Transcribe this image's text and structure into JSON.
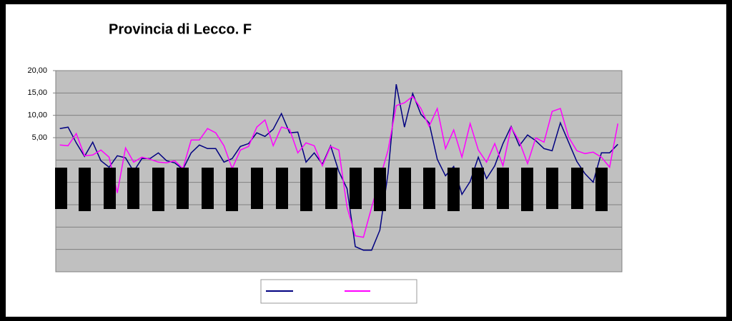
{
  "chart_data": {
    "type": "line",
    "title": "Provincia di Lecco. F",
    "categories": [
      null,
      null,
      null,
      null,
      null,
      null,
      null,
      null,
      null,
      null,
      null,
      null,
      null,
      null,
      null,
      null,
      null,
      null,
      null,
      null,
      null,
      null,
      null,
      null,
      null,
      null,
      null,
      null,
      null,
      null,
      null,
      null,
      null,
      null,
      null,
      null,
      null,
      null,
      null,
      null,
      null,
      null,
      null,
      null,
      null,
      null,
      null,
      null,
      null,
      null,
      null,
      null,
      null,
      null,
      null,
      null,
      null,
      null,
      null,
      null,
      null,
      null,
      null,
      null,
      null,
      null,
      null,
      null,
      null
    ],
    "series": [
      {
        "color": "#000080",
        "values": [
          7.04,
          7.36,
          3.84,
          0.8,
          4.0,
          -0.16,
          -1.6,
          0.96,
          0.48,
          -2.56,
          0.32,
          0.32,
          1.6,
          -0.16,
          -0.64,
          -2.08,
          1.6,
          3.36,
          2.56,
          2.56,
          -0.48,
          0.32,
          3.04,
          3.68,
          6.08,
          5.28,
          6.88,
          10.4,
          6.08,
          6.24,
          -0.48,
          1.6,
          -0.96,
          3.2,
          -2.56,
          -6.4,
          -19.36,
          -20.16,
          -20.16,
          -15.68,
          -2.88,
          16.96,
          7.36,
          14.88,
          10.24,
          8.32,
          0.16,
          -3.52,
          -1.44,
          -7.68,
          -4.8,
          0.64,
          -4.16,
          -1.28,
          3.68,
          7.52,
          3.2,
          5.6,
          4.32,
          2.56,
          2.08,
          8.32,
          4.0,
          -0.32,
          -3.04,
          -4.96,
          1.6,
          1.6,
          3.52
        ]
      },
      {
        "color": "#ff00ff",
        "values": [
          3.36,
          3.2,
          5.92,
          0.96,
          1.12,
          2.24,
          0.64,
          -7.36,
          2.72,
          -0.48,
          0.64,
          0.16,
          -0.48,
          -0.64,
          -0.16,
          -1.92,
          4.48,
          4.48,
          7.04,
          6.08,
          3.2,
          -1.92,
          2.24,
          3.04,
          7.36,
          8.96,
          3.2,
          7.36,
          6.88,
          1.6,
          3.84,
          3.2,
          -1.28,
          3.04,
          2.24,
          -10.56,
          -16.96,
          -17.28,
          -10.56,
          -4.16,
          2.24,
          12.16,
          12.8,
          14.24,
          11.52,
          7.52,
          11.52,
          2.56,
          6.72,
          0.64,
          8.16,
          2.24,
          -0.48,
          3.68,
          -1.28,
          7.36,
          4.16,
          -0.8,
          4.96,
          4.0,
          10.88,
          11.52,
          5.12,
          2.08,
          1.44,
          1.76,
          0.64,
          -1.6,
          8.16
        ]
      }
    ],
    "ylim": [
      -25,
      20
    ],
    "yticks": [
      {
        "value": 5,
        "label": "5,00"
      },
      {
        "value": 10,
        "label": "10,00"
      },
      {
        "value": 15,
        "label": "15,00"
      },
      {
        "value": 20,
        "label": "20,00"
      }
    ],
    "grid": true
  }
}
